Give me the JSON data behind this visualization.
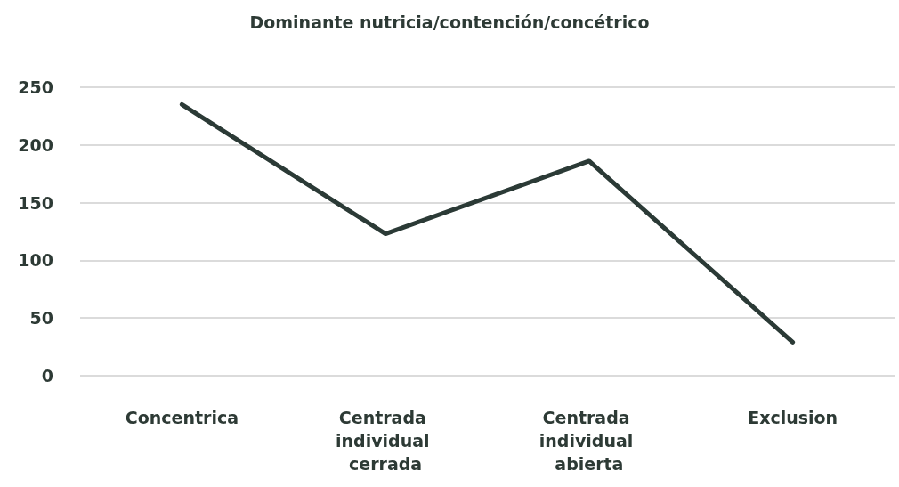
{
  "chart_data": {
    "type": "line",
    "title": "Dominante nutricia/contención/concétrico",
    "categories": [
      "Concentrica",
      "Centrada individual cerrada",
      "Centrada individual abierta",
      "Exclusion"
    ],
    "series": [
      {
        "color": "#2b3a36",
        "values": [
          235,
          123,
          186,
          29
        ]
      }
    ],
    "ylim": [
      0,
      250
    ],
    "yticks": [
      0,
      50,
      100,
      150,
      200,
      250
    ],
    "grid": "y",
    "marker": "none",
    "line_style": "solid"
  }
}
